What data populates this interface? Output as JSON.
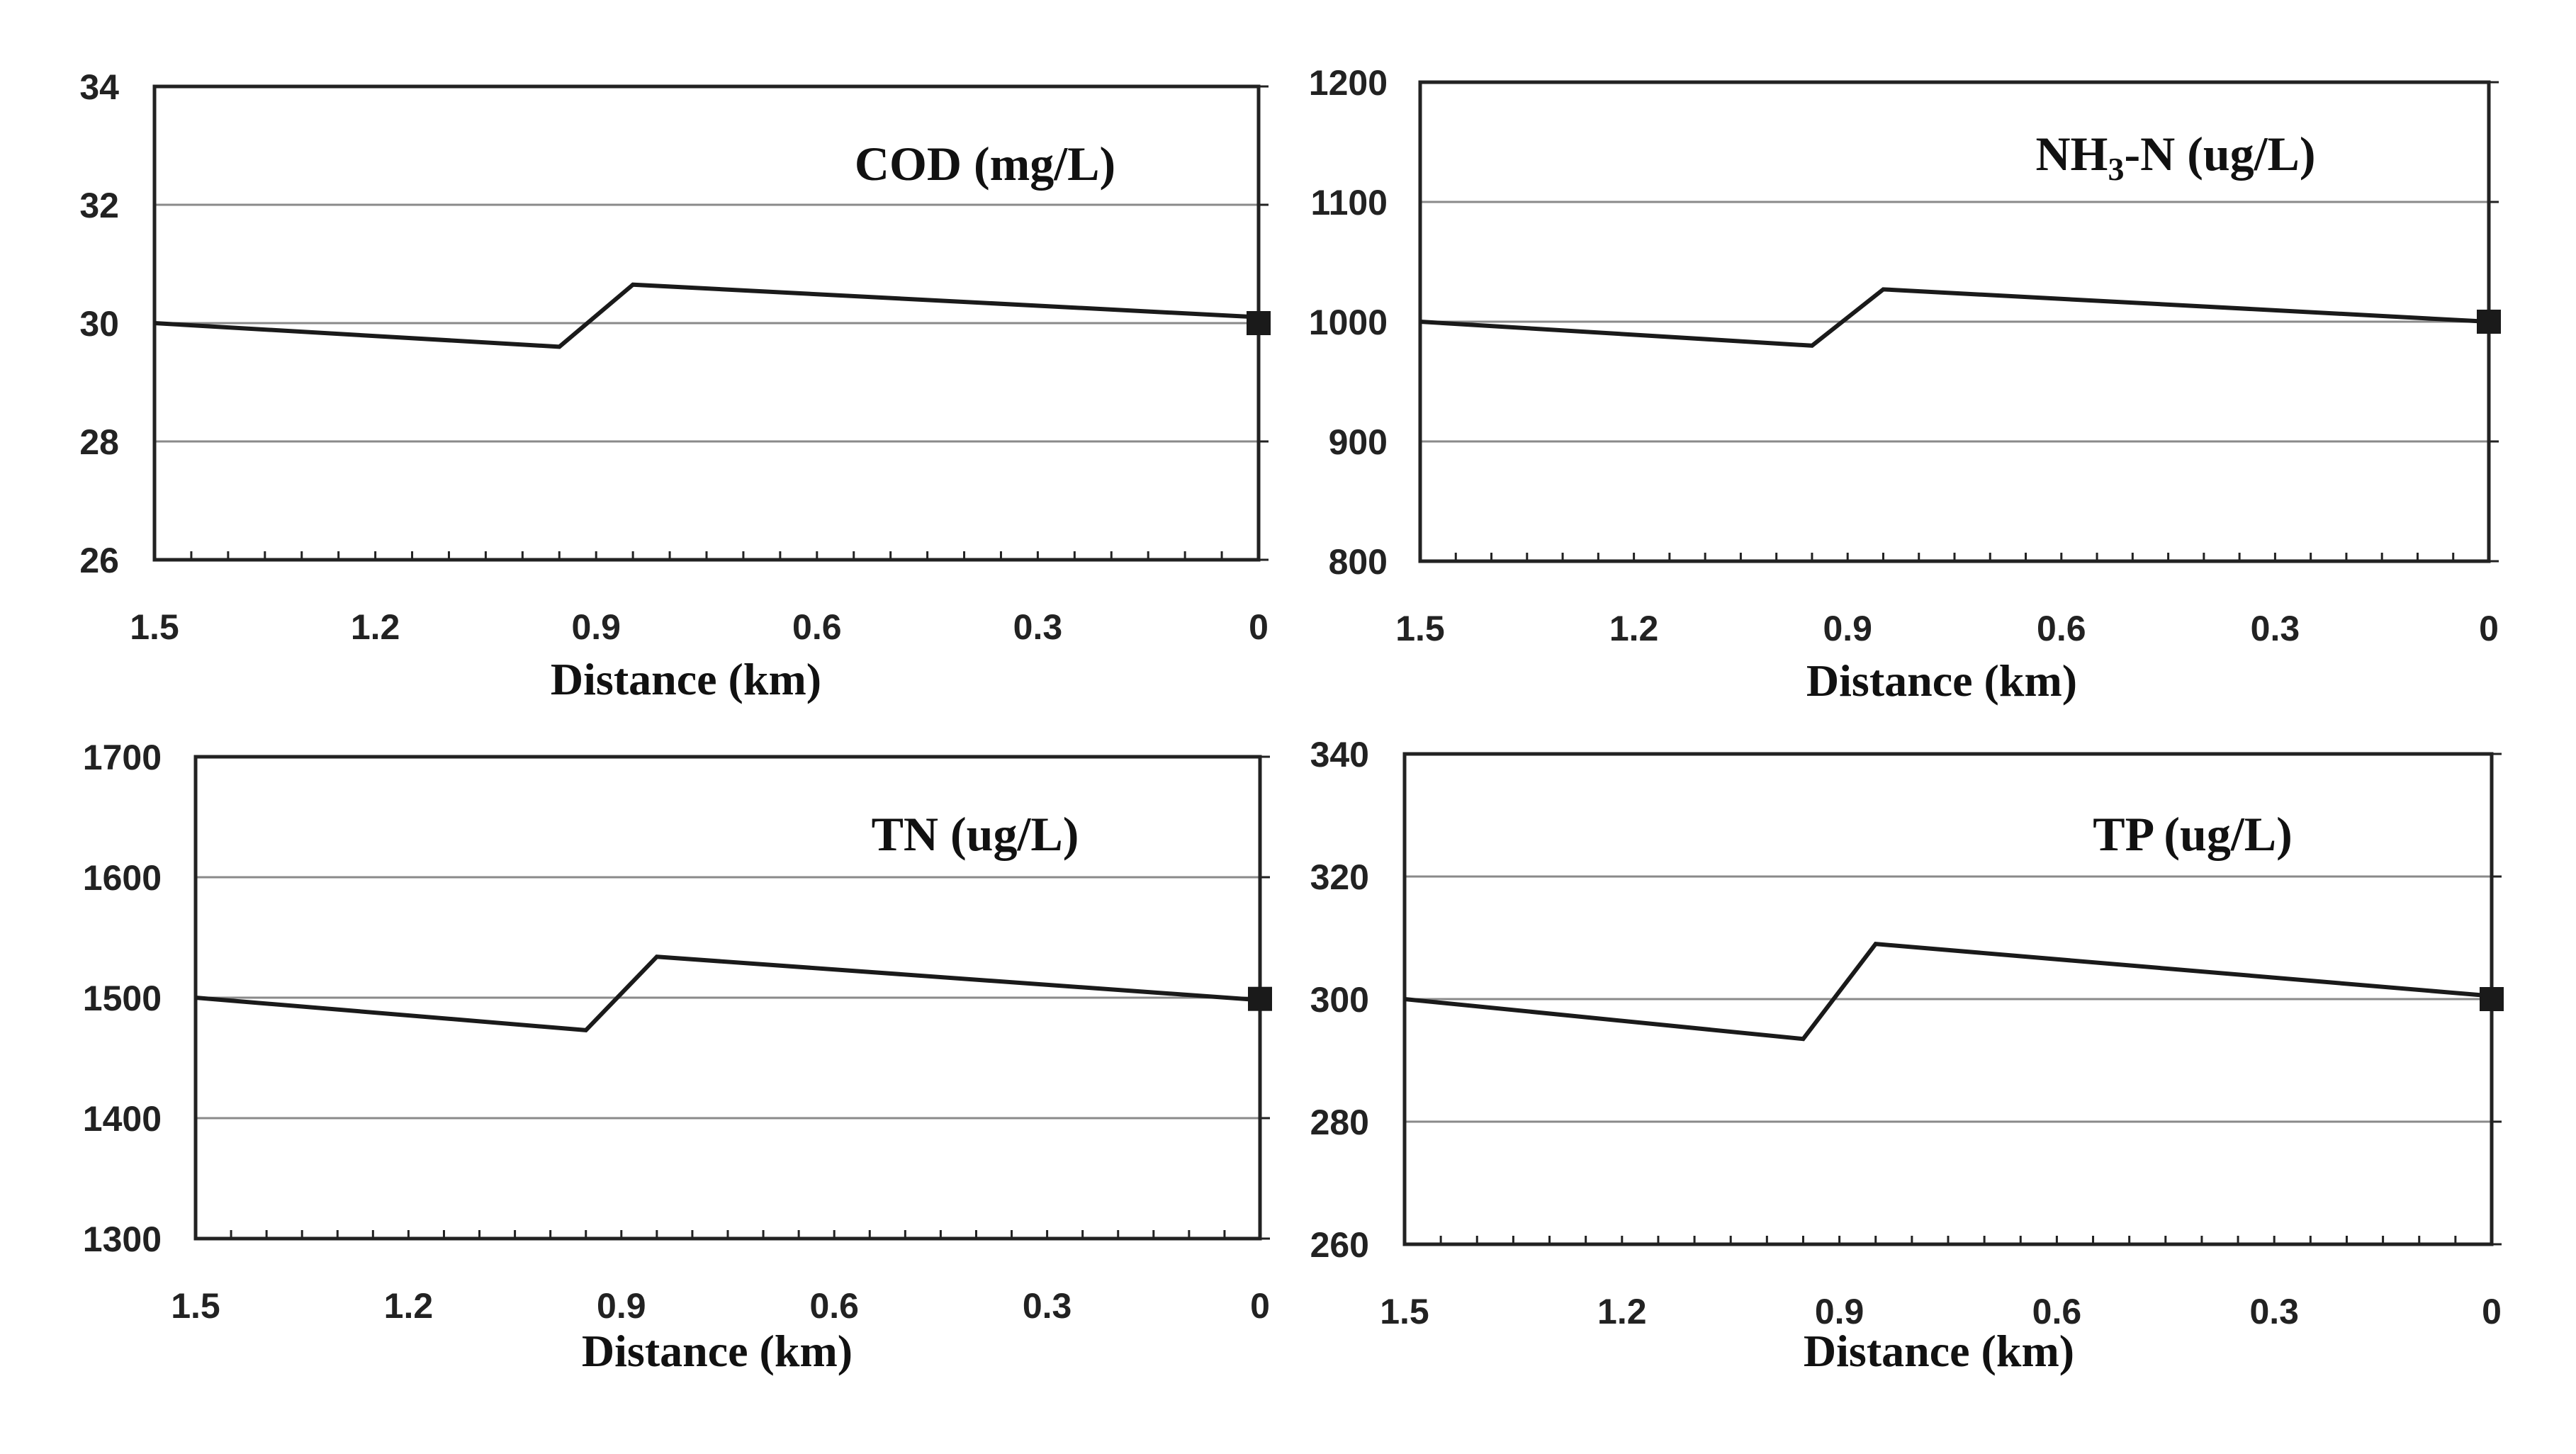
{
  "chart_data": [
    {
      "type": "line",
      "title": "COD (mg/L)",
      "title_parts": [
        {
          "text": "COD (mg/L)",
          "sub": false
        }
      ],
      "xlabel": "Distance (km)",
      "ylabel": "",
      "x_ticks": [
        "1.5",
        "1.2",
        "0.9",
        "0.6",
        "0.3",
        "0"
      ],
      "y_ticks": [
        "34",
        "32",
        "30",
        "28",
        "26"
      ],
      "xlim": [
        1.5,
        0
      ],
      "ylim": [
        26,
        34
      ],
      "grid": true,
      "series": [
        {
          "name": "COD",
          "x": [
            1.5,
            0.95,
            0.85,
            0
          ],
          "y": [
            30.0,
            29.6,
            30.65,
            30.1
          ]
        }
      ],
      "marker": {
        "x": 0,
        "y": 30.0,
        "shape": "square"
      }
    },
    {
      "type": "line",
      "title": "NH3-N (ug/L)",
      "title_parts": [
        {
          "text": "NH",
          "sub": false
        },
        {
          "text": "3",
          "sub": true
        },
        {
          "text": "-N (ug/L)",
          "sub": false
        }
      ],
      "xlabel": "Distance (km)",
      "ylabel": "",
      "x_ticks": [
        "1.5",
        "1.2",
        "0.9",
        "0.6",
        "0.3",
        "0"
      ],
      "y_ticks": [
        "1200",
        "1100",
        "1000",
        "900",
        "800"
      ],
      "xlim": [
        1.5,
        0
      ],
      "ylim": [
        800,
        1200
      ],
      "grid": true,
      "series": [
        {
          "name": "NH3-N",
          "x": [
            1.5,
            0.95,
            0.85,
            0
          ],
          "y": [
            1000,
            980,
            1027,
            1000
          ]
        }
      ],
      "marker": {
        "x": 0,
        "y": 1000,
        "shape": "square"
      }
    },
    {
      "type": "line",
      "title": "TN (ug/L)",
      "title_parts": [
        {
          "text": "TN (ug/L)",
          "sub": false
        }
      ],
      "xlabel": "Distance (km)",
      "ylabel": "",
      "x_ticks": [
        "1.5",
        "1.2",
        "0.9",
        "0.6",
        "0.3",
        "0"
      ],
      "y_ticks": [
        "1700",
        "1600",
        "1500",
        "1400",
        "1300"
      ],
      "xlim": [
        1.5,
        0
      ],
      "ylim": [
        1300,
        1700
      ],
      "grid": true,
      "series": [
        {
          "name": "TN",
          "x": [
            1.5,
            0.95,
            0.85,
            0
          ],
          "y": [
            1500,
            1473,
            1534,
            1498
          ]
        }
      ],
      "marker": {
        "x": 0,
        "y": 1499,
        "shape": "square"
      }
    },
    {
      "type": "line",
      "title": "TP (ug/L)",
      "title_parts": [
        {
          "text": "TP (ug/L)",
          "sub": false
        }
      ],
      "xlabel": "Distance (km)",
      "ylabel": "",
      "x_ticks": [
        "1.5",
        "1.2",
        "0.9",
        "0.6",
        "0.3",
        "0"
      ],
      "y_ticks": [
        "340",
        "320",
        "300",
        "280",
        "260"
      ],
      "xlim": [
        1.5,
        0
      ],
      "ylim": [
        260,
        340
      ],
      "grid": true,
      "series": [
        {
          "name": "TP",
          "x": [
            1.5,
            0.95,
            0.85,
            0
          ],
          "y": [
            300,
            293.5,
            309,
            300.5
          ]
        }
      ],
      "marker": {
        "x": 0,
        "y": 300,
        "shape": "square"
      }
    }
  ]
}
